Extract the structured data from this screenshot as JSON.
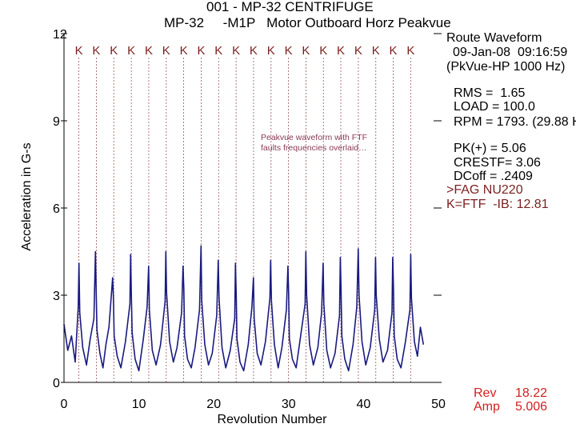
{
  "header": {
    "title": "001 - MP-32 CENTRIFUGE",
    "subtitle": "MP-32     -M1P   Motor Outboard Horz Peakvue"
  },
  "info_panel": {
    "route": "Route Waveform",
    "date": "09-Jan-08  09:16:59",
    "pkvue": "(PkVue-HP 1000 Hz)",
    "rms": "RMS =  1.65",
    "load": "LOAD = 100.0",
    "rpm": "RPM = 1793. (29.88 H",
    "pk": "PK(+) = 5.06",
    "crest": "CRESTF= 3.06",
    "dcoff": "DCoff = .2409",
    "bearing": ">FAG NU220",
    "fault": "K=FTF  -IB: 12.81"
  },
  "cursor_readout": {
    "rev_label": "Rev",
    "rev_value": "18.22",
    "amp_label": "Amp",
    "amp_value": "5.006"
  },
  "annotation": "Peakvue waveform with FTF faults frequencies overlaid…",
  "colors": {
    "waveform": "#1a1a80",
    "fault_lines": "#9c5a5a",
    "fault_marker": "#7a1f1f",
    "readout": "#d42020"
  },
  "chart_data": {
    "type": "line",
    "xlabel": "Revolution Number",
    "ylabel": "Acceleration in G-s",
    "xlim": [
      0,
      50
    ],
    "ylim": [
      0,
      12
    ],
    "x_ticks": [
      "0",
      "10",
      "20",
      "30",
      "40",
      "50"
    ],
    "y_ticks": [
      "0",
      "3",
      "6",
      "9",
      "12"
    ],
    "x_tick_values": [
      0,
      10,
      20,
      30,
      40,
      50
    ],
    "y_tick_values": [
      0,
      3,
      6,
      9,
      12
    ],
    "fault_marker_label": "K",
    "fault_marker_positions": [
      1.99,
      4.32,
      6.65,
      8.99,
      11.32,
      13.65,
      15.98,
      18.32,
      20.65,
      22.98,
      25.31,
      27.65,
      29.98,
      32.31,
      34.64,
      36.97,
      39.31,
      41.64,
      43.97,
      46.3
    ],
    "series": [
      {
        "x": [
          0.0,
          0.5,
          1.0,
          1.5,
          1.9,
          2.0,
          2.1,
          2.5,
          3.0,
          3.5,
          4.0,
          4.2,
          4.3,
          4.4,
          4.8,
          5.2,
          5.6,
          6.0,
          6.5,
          6.6,
          6.7,
          7.1,
          7.6,
          8.2,
          8.8,
          8.9,
          9.0,
          9.1,
          9.5,
          10.0,
          10.6,
          11.1,
          11.3,
          11.4,
          11.8,
          12.3,
          12.9,
          13.5,
          13.6,
          13.7,
          14.1,
          14.6,
          15.1,
          15.7,
          15.9,
          16.0,
          16.1,
          16.5,
          17.0,
          17.5,
          18.1,
          18.3,
          18.4,
          18.8,
          19.3,
          19.8,
          20.4,
          20.6,
          20.7,
          21.1,
          21.6,
          22.2,
          22.8,
          22.9,
          23.0,
          23.1,
          23.5,
          24.0,
          24.6,
          25.1,
          25.3,
          25.4,
          25.8,
          26.3,
          26.9,
          27.5,
          27.6,
          27.7,
          28.1,
          28.6,
          29.1,
          29.7,
          29.9,
          30.0,
          30.1,
          30.5,
          31.0,
          31.6,
          32.2,
          32.3,
          32.4,
          32.8,
          33.3,
          33.9,
          34.4,
          34.6,
          34.7,
          35.1,
          35.6,
          36.2,
          36.8,
          36.9,
          37.0,
          37.1,
          37.5,
          38.0,
          38.6,
          39.1,
          39.3,
          39.4,
          39.8,
          40.3,
          40.9,
          41.5,
          41.6,
          41.7,
          42.1,
          42.6,
          43.2,
          43.8,
          43.9,
          44.0,
          44.1,
          44.5,
          45.0,
          45.6,
          46.2,
          46.3,
          46.4,
          46.8,
          47.2,
          47.6,
          48.0
        ],
        "y": [
          2.0,
          1.1,
          1.6,
          0.7,
          2.6,
          4.1,
          2.4,
          1.2,
          0.6,
          1.5,
          2.2,
          4.5,
          3.2,
          1.8,
          1.0,
          0.5,
          1.3,
          1.9,
          3.6,
          2.9,
          1.6,
          0.9,
          0.5,
          1.4,
          2.7,
          4.4,
          3.0,
          1.7,
          0.8,
          0.4,
          1.5,
          2.6,
          4.0,
          2.5,
          1.1,
          0.6,
          1.3,
          2.8,
          4.5,
          3.1,
          1.4,
          0.7,
          1.2,
          2.4,
          4.0,
          3.2,
          1.6,
          0.8,
          0.5,
          1.2,
          2.5,
          4.7,
          2.8,
          1.3,
          0.6,
          1.0,
          2.3,
          4.2,
          2.9,
          1.2,
          0.5,
          1.1,
          2.2,
          4.1,
          3.0,
          1.5,
          0.7,
          0.4,
          1.3,
          2.6,
          3.6,
          2.2,
          1.0,
          0.6,
          1.4,
          2.9,
          4.2,
          2.8,
          1.3,
          0.5,
          1.2,
          2.5,
          4.0,
          3.1,
          1.5,
          0.8,
          0.5,
          1.6,
          2.7,
          4.5,
          3.0,
          1.3,
          0.6,
          1.2,
          2.4,
          4.1,
          2.7,
          1.1,
          0.5,
          1.0,
          2.3,
          4.3,
          3.2,
          1.6,
          0.8,
          0.4,
          1.3,
          2.6,
          4.6,
          3.0,
          1.4,
          0.6,
          1.2,
          2.5,
          4.3,
          3.0,
          1.5,
          0.7,
          1.1,
          2.4,
          4.3,
          3.3,
          1.6,
          0.8,
          0.5,
          1.4,
          2.5,
          4.4,
          2.9,
          1.4,
          0.9,
          1.9,
          1.3
        ]
      }
    ],
    "grid": false
  }
}
